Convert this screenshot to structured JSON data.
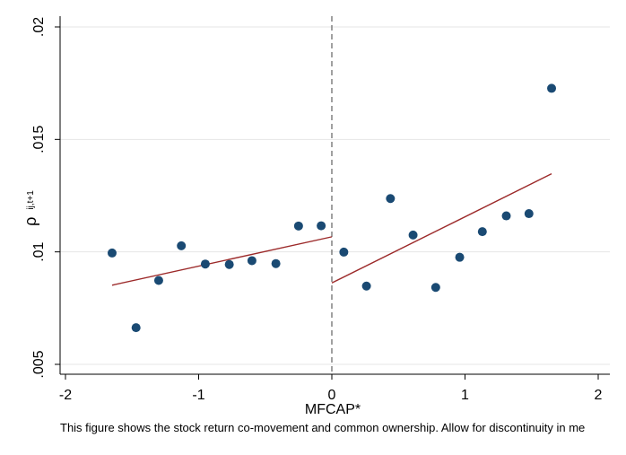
{
  "chart_data": {
    "type": "scatter",
    "xlabel": "MFCAP*",
    "ylabel": "ρ",
    "ylabel_subscript": "ij,t+1",
    "xlim": [
      -2.0,
      2.0
    ],
    "ylim": [
      0.005,
      0.02
    ],
    "x_ticks": [
      -2,
      -1,
      0,
      1,
      2
    ],
    "x_tick_labels": [
      "-2",
      "-1",
      "0",
      "1",
      "2"
    ],
    "y_ticks": [
      0.005,
      0.01,
      0.015,
      0.02
    ],
    "y_tick_labels": [
      ".005",
      ".01",
      ".015",
      ".02"
    ],
    "grid": "horizontal",
    "cutoff": 0,
    "points": [
      {
        "x": -1.65,
        "y": 0.00995
      },
      {
        "x": -1.47,
        "y": 0.00663
      },
      {
        "x": -1.3,
        "y": 0.00873
      },
      {
        "x": -1.13,
        "y": 0.01027
      },
      {
        "x": -0.95,
        "y": 0.00946
      },
      {
        "x": -0.77,
        "y": 0.00944
      },
      {
        "x": -0.6,
        "y": 0.00961
      },
      {
        "x": -0.42,
        "y": 0.00948
      },
      {
        "x": -0.25,
        "y": 0.01115
      },
      {
        "x": -0.08,
        "y": 0.01116
      },
      {
        "x": 0.09,
        "y": 0.00999
      },
      {
        "x": 0.26,
        "y": 0.00848
      },
      {
        "x": 0.44,
        "y": 0.01237
      },
      {
        "x": 0.61,
        "y": 0.01075
      },
      {
        "x": 0.78,
        "y": 0.00842
      },
      {
        "x": 0.96,
        "y": 0.00976
      },
      {
        "x": 1.13,
        "y": 0.0109
      },
      {
        "x": 1.31,
        "y": 0.0116
      },
      {
        "x": 1.48,
        "y": 0.0117
      },
      {
        "x": 1.65,
        "y": 0.01727
      }
    ],
    "fit_lines": [
      {
        "x": [
          -1.65,
          0.0
        ],
        "y": [
          0.00852,
          0.01067
        ]
      },
      {
        "x": [
          0.0,
          1.65
        ],
        "y": [
          0.00862,
          0.01347
        ]
      }
    ],
    "colors": {
      "points": "#1a4a73",
      "fit": "#9c2a2a",
      "cutoff": "#808080",
      "grid": "#e6e6e6"
    }
  },
  "caption": "This figure shows the stock return co-movement and common ownership. Allow for discontinuity in me"
}
